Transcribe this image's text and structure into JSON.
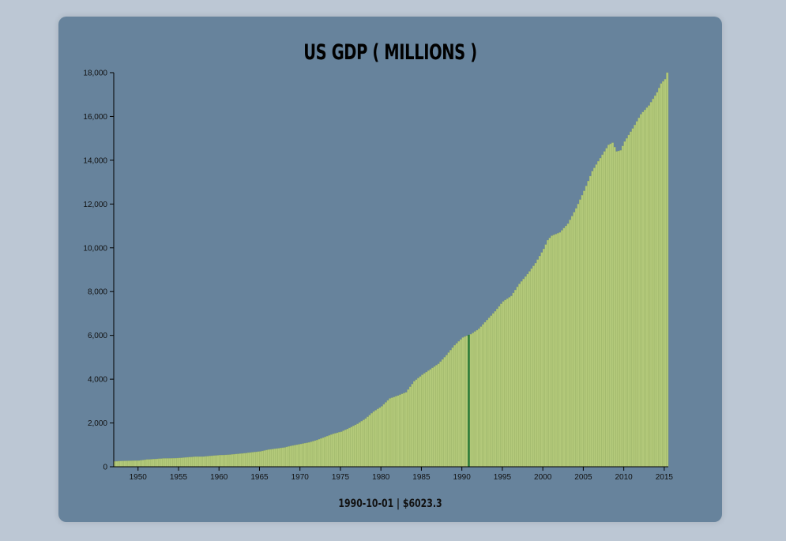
{
  "title": "US GDP ( MILLIONS )",
  "tooltip": {
    "date": "1990-10-01",
    "value": "$6023.3",
    "text": "1990-10-01 | $6023.3"
  },
  "colors": {
    "background": "#bcc7d4",
    "card": "#67839c",
    "bar": "#b3c97a",
    "bar_stroke": "#95ad5f",
    "highlight": "#2e7d3a",
    "axis": "#000000"
  },
  "chart_data": {
    "type": "bar",
    "title": "US GDP ( MILLIONS )",
    "xlabel": "",
    "ylabel": "",
    "x_start": 1947.0,
    "x_step": 0.25,
    "xlim": [
      1947.0,
      2015.5
    ],
    "ylim": [
      0,
      18000
    ],
    "x_ticks": [
      1950,
      1955,
      1960,
      1965,
      1970,
      1975,
      1980,
      1985,
      1990,
      1995,
      2000,
      2005,
      2010,
      2015
    ],
    "x_tick_labels": [
      "1950",
      "1955",
      "1960",
      "1965",
      "1970",
      "1975",
      "1980",
      "1985",
      "1990",
      "1995",
      "2000",
      "2005",
      "2010",
      "2015"
    ],
    "y_ticks": [
      0,
      2000,
      4000,
      6000,
      8000,
      10000,
      12000,
      14000,
      16000,
      18000
    ],
    "y_tick_labels": [
      "0",
      "2,000",
      "4,000",
      "6,000",
      "8,000",
      "10,000",
      "12,000",
      "14,000",
      "16,000",
      "18,000"
    ],
    "anchors": [
      [
        1947.0,
        243
      ],
      [
        1948.0,
        266
      ],
      [
        1949.0,
        272
      ],
      [
        1950.0,
        280
      ],
      [
        1951.0,
        330
      ],
      [
        1952.0,
        352
      ],
      [
        1953.0,
        380
      ],
      [
        1954.0,
        382
      ],
      [
        1955.0,
        400
      ],
      [
        1956.0,
        432
      ],
      [
        1957.0,
        460
      ],
      [
        1958.0,
        465
      ],
      [
        1959.0,
        500
      ],
      [
        1960.0,
        530
      ],
      [
        1961.0,
        545
      ],
      [
        1962.0,
        580
      ],
      [
        1963.0,
        615
      ],
      [
        1964.0,
        660
      ],
      [
        1965.0,
        700
      ],
      [
        1966.0,
        780
      ],
      [
        1967.0,
        830
      ],
      [
        1968.0,
        880
      ],
      [
        1969.0,
        970
      ],
      [
        1970.0,
        1040
      ],
      [
        1971.0,
        1110
      ],
      [
        1972.0,
        1220
      ],
      [
        1973.0,
        1360
      ],
      [
        1974.0,
        1500
      ],
      [
        1975.0,
        1600
      ],
      [
        1976.0,
        1770
      ],
      [
        1977.0,
        1960
      ],
      [
        1978.0,
        2200
      ],
      [
        1979.0,
        2520
      ],
      [
        1980.0,
        2760
      ],
      [
        1981.0,
        3120
      ],
      [
        1982.0,
        3250
      ],
      [
        1983.0,
        3400
      ],
      [
        1984.0,
        3900
      ],
      [
        1985.0,
        4200
      ],
      [
        1986.0,
        4450
      ],
      [
        1987.0,
        4700
      ],
      [
        1988.0,
        5100
      ],
      [
        1989.0,
        5550
      ],
      [
        1990.0,
        5900
      ],
      [
        1990.75,
        6023.3
      ],
      [
        1991.0,
        6050
      ],
      [
        1992.0,
        6300
      ],
      [
        1993.0,
        6700
      ],
      [
        1994.0,
        7100
      ],
      [
        1995.0,
        7550
      ],
      [
        1996.0,
        7800
      ],
      [
        1997.0,
        8350
      ],
      [
        1998.0,
        8800
      ],
      [
        1999.0,
        9300
      ],
      [
        2000.0,
        9950
      ],
      [
        2000.5,
        10350
      ],
      [
        2001.0,
        10550
      ],
      [
        2002.0,
        10700
      ],
      [
        2003.0,
        11100
      ],
      [
        2004.0,
        11800
      ],
      [
        2005.0,
        12600
      ],
      [
        2006.0,
        13500
      ],
      [
        2007.0,
        14100
      ],
      [
        2008.0,
        14700
      ],
      [
        2008.5,
        14800
      ],
      [
        2009.0,
        14400
      ],
      [
        2009.5,
        14450
      ],
      [
        2010.0,
        14850
      ],
      [
        2011.0,
        15450
      ],
      [
        2012.0,
        16100
      ],
      [
        2013.0,
        16500
      ],
      [
        2014.0,
        17100
      ],
      [
        2014.5,
        17500
      ],
      [
        2015.0,
        17700
      ],
      [
        2015.25,
        18000
      ]
    ],
    "highlight_x": 1990.75,
    "highlight_value": 6023.3
  }
}
